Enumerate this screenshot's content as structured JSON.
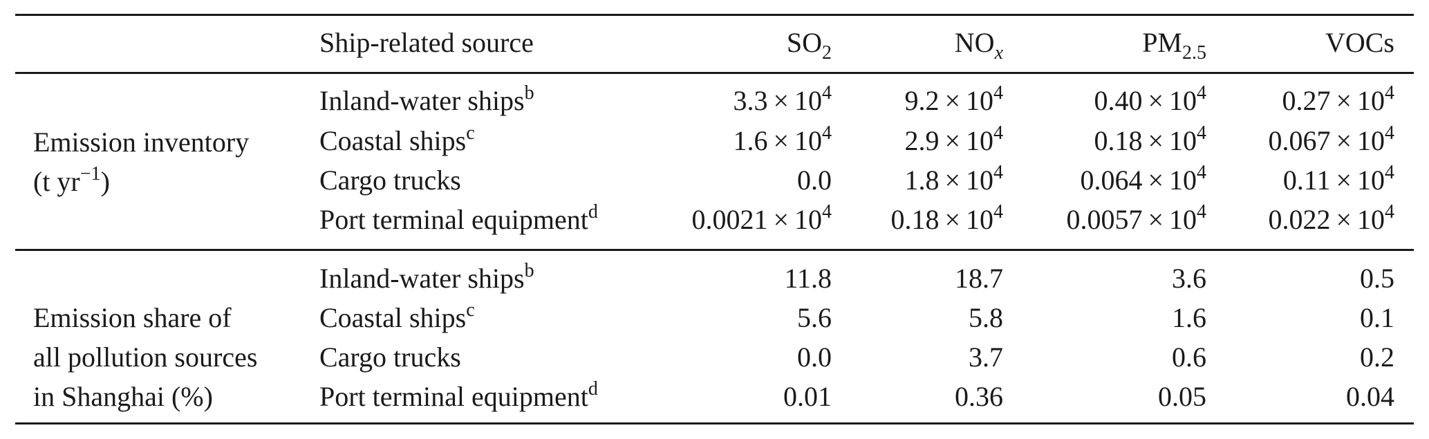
{
  "table": {
    "header": {
      "source_label": "Ship-related source",
      "columns": [
        {
          "base": "SO",
          "sub": "2",
          "italic_sub": false
        },
        {
          "base": "NO",
          "sub": "x",
          "italic_sub": true
        },
        {
          "base": "PM",
          "sub": "2.5",
          "italic_sub": false
        },
        {
          "base": "VOCs",
          "sub": "",
          "italic_sub": false
        }
      ]
    },
    "groups": [
      {
        "label_lines": [
          "Emission inventory",
          "(t yr",
          "−1",
          ")"
        ],
        "rows": [
          {
            "source": "Inland-water ships",
            "note": "b",
            "values": [
              {
                "mant": "3.3",
                "exp": "4"
              },
              {
                "mant": "9.2",
                "exp": "4"
              },
              {
                "mant": "0.40",
                "exp": "4"
              },
              {
                "mant": "0.27",
                "exp": "4"
              }
            ]
          },
          {
            "source": "Coastal ships",
            "note": "c",
            "values": [
              {
                "mant": "1.6",
                "exp": "4"
              },
              {
                "mant": "2.9",
                "exp": "4"
              },
              {
                "mant": "0.18",
                "exp": "4"
              },
              {
                "mant": "0.067",
                "exp": "4"
              }
            ]
          },
          {
            "source": "Cargo trucks",
            "note": "",
            "values": [
              {
                "plain": "0.0"
              },
              {
                "mant": "1.8",
                "exp": "4"
              },
              {
                "mant": "0.064",
                "exp": "4"
              },
              {
                "mant": "0.11",
                "exp": "4"
              }
            ]
          },
          {
            "source": "Port terminal equipment",
            "note": "d",
            "values": [
              {
                "mant": "0.0021",
                "exp": "4"
              },
              {
                "mant": "0.18",
                "exp": "4"
              },
              {
                "mant": "0.0057",
                "exp": "4"
              },
              {
                "mant": "0.022",
                "exp": "4"
              }
            ]
          }
        ]
      },
      {
        "label_lines": [
          "Emission share of",
          "all pollution sources",
          "in Shanghai (%)"
        ],
        "rows": [
          {
            "source": "Inland-water ships",
            "note": "b",
            "values": [
              {
                "plain": "11.8"
              },
              {
                "plain": "18.7"
              },
              {
                "plain": "3.6"
              },
              {
                "plain": "0.5"
              }
            ]
          },
          {
            "source": "Coastal ships",
            "note": "c",
            "values": [
              {
                "plain": "5.6"
              },
              {
                "plain": "5.8"
              },
              {
                "plain": "1.6"
              },
              {
                "plain": "0.1"
              }
            ]
          },
          {
            "source": "Cargo trucks",
            "note": "",
            "values": [
              {
                "plain": "0.0"
              },
              {
                "plain": "3.7"
              },
              {
                "plain": "0.6"
              },
              {
                "plain": "0.2"
              }
            ]
          },
          {
            "source": "Port terminal equipment",
            "note": "d",
            "values": [
              {
                "plain": "0.01"
              },
              {
                "plain": "0.36"
              },
              {
                "plain": "0.05"
              },
              {
                "plain": "0.04"
              }
            ]
          }
        ]
      }
    ],
    "times_symbol": "×",
    "base_ten": "10"
  }
}
